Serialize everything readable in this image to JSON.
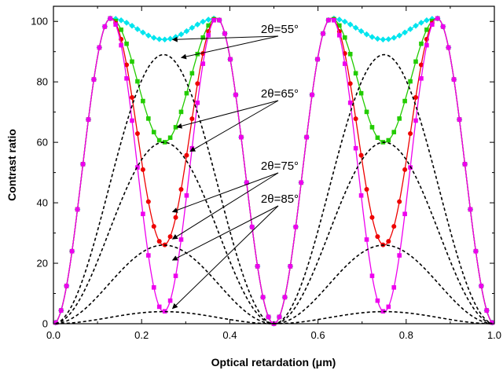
{
  "chart_data": {
    "type": "line",
    "xlabel": "Optical retardation (μm)",
    "ylabel": "Contrast ratio",
    "xlim": [
      0,
      1.0
    ],
    "ylim": [
      0,
      105
    ],
    "x_ticks": [
      0.0,
      0.2,
      0.4,
      0.6,
      0.8,
      1.0
    ],
    "x_tick_labels": [
      "0.0",
      "0.2",
      "0.4",
      "0.6",
      "0.8",
      "1.0"
    ],
    "y_ticks": [
      0,
      20,
      40,
      60,
      80,
      100
    ],
    "y_tick_labels": [
      "0",
      "20",
      "40",
      "60",
      "80",
      "100"
    ],
    "grid": false,
    "legend": "none",
    "series": [
      {
        "color": "#00e5ee",
        "marker": "diamond",
        "style": "solid",
        "peak": 101,
        "dip": 94,
        "at": 0.13,
        "points": 80
      },
      {
        "color": "#22cc00",
        "marker": "square",
        "style": "solid",
        "peak": 101,
        "dip": 60,
        "at": 0.13,
        "points": 80
      },
      {
        "color": "#ee0000",
        "marker": "circle",
        "style": "solid",
        "peak": 101,
        "dip": 26,
        "at": 0.13,
        "points": 80
      },
      {
        "color": "#ee00ee",
        "marker": "square",
        "style": "solid",
        "peak": 101,
        "dip": 4,
        "at": 0.13,
        "points": 80
      },
      {
        "color": "#000000",
        "marker": "none",
        "style": "dashed",
        "peak": 89,
        "at": 0.25
      },
      {
        "color": "#000000",
        "marker": "none",
        "style": "dashed",
        "peak": 60,
        "at": 0.25
      },
      {
        "color": "#000000",
        "marker": "none",
        "style": "dashed",
        "peak": 26,
        "at": 0.25
      },
      {
        "color": "#000000",
        "marker": "none",
        "style": "dashed",
        "peak": 4,
        "at": 0.25
      }
    ],
    "annotations": [
      {
        "text": "2θ=55°",
        "arrows_to": [
          [
            0.27,
            94
          ],
          [
            0.29,
            88
          ]
        ]
      },
      {
        "text": "2θ=65°",
        "arrows_to": [
          [
            0.28,
            65
          ],
          [
            0.31,
            57
          ]
        ]
      },
      {
        "text": "2θ=75°",
        "arrows_to": [
          [
            0.27,
            37
          ],
          [
            0.27,
            28
          ]
        ]
      },
      {
        "text": "2θ=85°",
        "arrows_to": [
          [
            0.27,
            21
          ],
          [
            0.27,
            5
          ]
        ]
      }
    ]
  }
}
